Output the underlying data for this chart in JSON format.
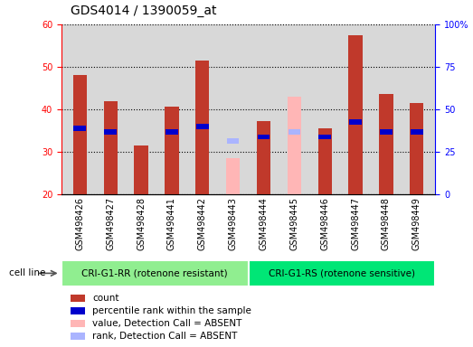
{
  "title": "GDS4014 / 1390059_at",
  "samples": [
    "GSM498426",
    "GSM498427",
    "GSM498428",
    "GSM498441",
    "GSM498442",
    "GSM498443",
    "GSM498444",
    "GSM498445",
    "GSM498446",
    "GSM498447",
    "GSM498448",
    "GSM498449"
  ],
  "count_values": [
    48.0,
    42.0,
    31.5,
    40.7,
    51.5,
    null,
    37.3,
    null,
    35.5,
    57.5,
    43.5,
    41.5
  ],
  "rank_values": [
    35.5,
    34.7,
    null,
    34.7,
    36.0,
    null,
    33.5,
    34.7,
    33.5,
    37.0,
    34.7,
    34.7
  ],
  "absent_count_values": [
    null,
    null,
    null,
    null,
    null,
    28.5,
    null,
    43.0,
    null,
    null,
    null,
    null
  ],
  "absent_rank_values": [
    null,
    null,
    null,
    null,
    null,
    32.5,
    null,
    34.7,
    null,
    null,
    null,
    null
  ],
  "ymin": 20,
  "ymax": 60,
  "yticks": [
    20,
    30,
    40,
    50,
    60
  ],
  "right_yticklabels": [
    "0",
    "25",
    "50",
    "75",
    "100%"
  ],
  "group1_label": "CRI-G1-RR (rotenone resistant)",
  "group2_label": "CRI-G1-RS (rotenone sensitive)",
  "cell_line_label": "cell line",
  "group1_color": "#90ee90",
  "group2_color": "#00e676",
  "bar_color": "#c0392b",
  "rank_color": "#0000cc",
  "absent_bar_color": "#ffb6b6",
  "absent_rank_color": "#aab4ff",
  "legend_items": [
    {
      "color": "#c0392b",
      "label": "count"
    },
    {
      "color": "#0000cc",
      "label": "percentile rank within the sample"
    },
    {
      "color": "#ffb6b6",
      "label": "value, Detection Call = ABSENT"
    },
    {
      "color": "#aab4ff",
      "label": "rank, Detection Call = ABSENT"
    }
  ],
  "title_fontsize": 10,
  "tick_fontsize": 7,
  "bar_width": 0.45
}
